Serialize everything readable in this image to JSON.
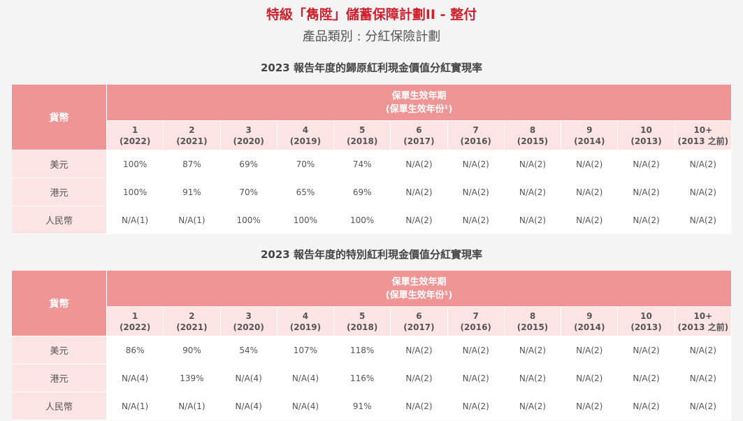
{
  "title": "特級「雋陞」儲蓄保障計劃II - 整付",
  "subtitle": "產品類別 : 分紅保險計劃",
  "table1": {
    "title": "2023 報告年度的歸原紅利現金價值分紅實現率",
    "currency_header": "貨幣",
    "term_header_line1": "保單生效年期",
    "term_header_line2": "(保單生效年份¹)",
    "columns": [
      {
        "term": "1",
        "year": "(2022)"
      },
      {
        "term": "2",
        "year": "(2021)"
      },
      {
        "term": "3",
        "year": "(2020)"
      },
      {
        "term": "4",
        "year": "(2019)"
      },
      {
        "term": "5",
        "year": "(2018)"
      },
      {
        "term": "6",
        "year": "(2017)"
      },
      {
        "term": "7",
        "year": "(2016)"
      },
      {
        "term": "8",
        "year": "(2015)"
      },
      {
        "term": "9",
        "year": "(2014)"
      },
      {
        "term": "10",
        "year": "(2013)"
      },
      {
        "term": "10+",
        "year": "(2013 之前)"
      }
    ],
    "rows": [
      {
        "currency": "美元",
        "values": [
          "100%",
          "87%",
          "69%",
          "70%",
          "74%",
          "N/A(2)",
          "N/A(2)",
          "N/A(2)",
          "N/A(2)",
          "N/A(2)",
          "N/A(2)"
        ]
      },
      {
        "currency": "港元",
        "values": [
          "100%",
          "91%",
          "70%",
          "65%",
          "69%",
          "N/A(2)",
          "N/A(2)",
          "N/A(2)",
          "N/A(2)",
          "N/A(2)",
          "N/A(2)"
        ]
      },
      {
        "currency": "人民幣",
        "values": [
          "N/A(1)",
          "N/A(1)",
          "100%",
          "100%",
          "100%",
          "N/A(2)",
          "N/A(2)",
          "N/A(2)",
          "N/A(2)",
          "N/A(2)",
          "N/A(2)"
        ]
      }
    ]
  },
  "table2": {
    "title": "2023 報告年度的特別紅利現金價值分紅實現率",
    "currency_header": "貨幣",
    "term_header_line1": "保單生效年期",
    "term_header_line2": "(保單生效年份¹)",
    "columns": [
      {
        "term": "1",
        "year": "(2022)"
      },
      {
        "term": "2",
        "year": "(2021)"
      },
      {
        "term": "3",
        "year": "(2020)"
      },
      {
        "term": "4",
        "year": "(2019)"
      },
      {
        "term": "5",
        "year": "(2018)"
      },
      {
        "term": "6",
        "year": "(2017)"
      },
      {
        "term": "7",
        "year": "(2016)"
      },
      {
        "term": "8",
        "year": "(2015)"
      },
      {
        "term": "9",
        "year": "(2014)"
      },
      {
        "term": "10",
        "year": "(2013)"
      },
      {
        "term": "10+",
        "year": "(2013 之前)"
      }
    ],
    "rows": [
      {
        "currency": "美元",
        "values": [
          "86%",
          "90%",
          "54%",
          "107%",
          "118%",
          "N/A(2)",
          "N/A(2)",
          "N/A(2)",
          "N/A(2)",
          "N/A(2)",
          "N/A(2)"
        ]
      },
      {
        "currency": "港元",
        "values": [
          "N/A(4)",
          "139%",
          "N/A(4)",
          "N/A(4)",
          "116%",
          "N/A(2)",
          "N/A(2)",
          "N/A(2)",
          "N/A(2)",
          "N/A(2)",
          "N/A(2)"
        ]
      },
      {
        "currency": "人民幣",
        "values": [
          "N/A(1)",
          "N/A(1)",
          "N/A(4)",
          "N/A(4)",
          "91%",
          "N/A(2)",
          "N/A(2)",
          "N/A(2)",
          "N/A(2)",
          "N/A(2)",
          "N/A(2)"
        ]
      }
    ]
  }
}
